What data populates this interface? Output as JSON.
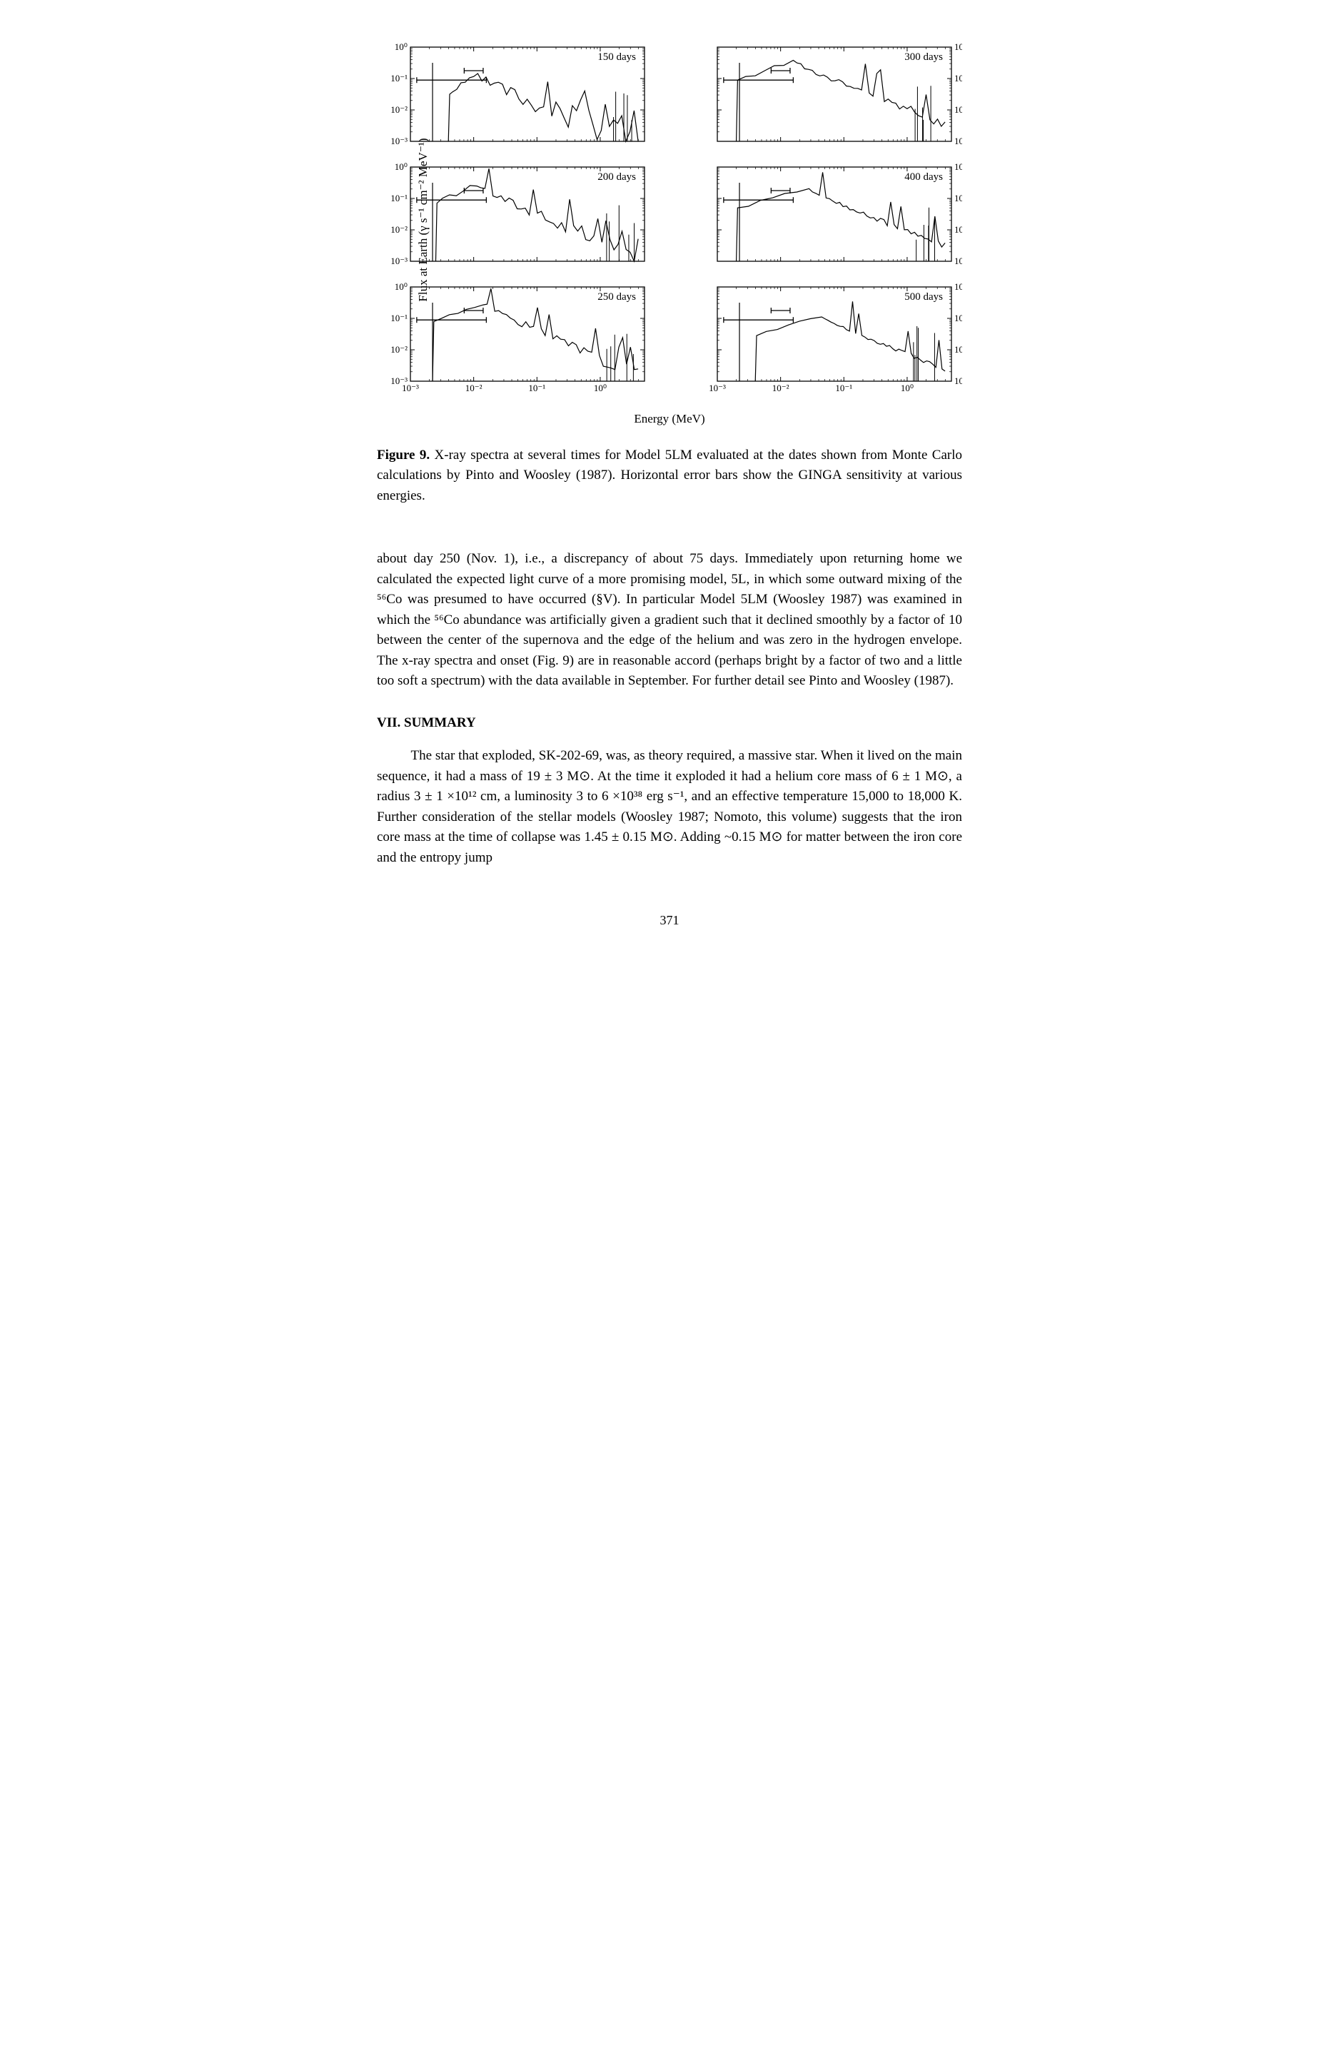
{
  "figure": {
    "ylabel": "Flux at Earth (γ s⁻¹ cm⁻² MeV⁻¹)",
    "xlabel": "Energy (MeV)",
    "xlim_log": [
      -3,
      0.7
    ],
    "ylim_log": [
      -3,
      0
    ],
    "xtick_labels": [
      "10⁻³",
      "10⁻²",
      "10⁻¹",
      "10⁰"
    ],
    "xtick_positions": [
      -3,
      -2,
      -1,
      0
    ],
    "ytick_labels": [
      "10⁻³",
      "10⁻²",
      "10⁻¹",
      "10⁰"
    ],
    "ytick_positions": [
      -3,
      -2,
      -1,
      0
    ],
    "tick_fontsize": 13,
    "label_fontsize": 17,
    "annot_fontsize": 15,
    "line_color": "#000000",
    "line_width": 1.2,
    "background_color": "#ffffff",
    "panels": [
      {
        "label": "150 days",
        "shape": {
          "rise_start": -2.4,
          "peak_x": -2.0,
          "peak_y": -0.9,
          "decay_noise": 0.9,
          "decay_end_y": -3.0
        }
      },
      {
        "label": "300 days",
        "shape": {
          "rise_start": -2.7,
          "peak_x": -1.8,
          "peak_y": -0.45,
          "decay_noise": 0.3,
          "decay_end_y": -2.4
        }
      },
      {
        "label": "200 days",
        "shape": {
          "rise_start": -2.6,
          "peak_x": -1.95,
          "peak_y": -0.55,
          "decay_noise": 0.6,
          "decay_end_y": -2.9
        }
      },
      {
        "label": "400 days",
        "shape": {
          "rise_start": -2.7,
          "peak_x": -1.55,
          "peak_y": -0.7,
          "decay_noise": 0.2,
          "decay_end_y": -2.5
        }
      },
      {
        "label": "250 days",
        "shape": {
          "rise_start": -2.65,
          "peak_x": -1.85,
          "peak_y": -0.5,
          "decay_noise": 0.4,
          "decay_end_y": -2.8
        }
      },
      {
        "label": "500 days",
        "shape": {
          "rise_start": -2.4,
          "peak_x": -1.35,
          "peak_y": -0.95,
          "decay_noise": 0.15,
          "decay_end_y": -2.6
        }
      }
    ],
    "error_bars": {
      "bars": [
        {
          "x_center": -2.35,
          "y": -1.05,
          "halfw": 0.55
        },
        {
          "x_center": -2.0,
          "y": -0.75,
          "halfw": 0.15
        }
      ]
    },
    "line_marks": [
      {
        "x": -2.65,
        "y1": -3.0,
        "y2": -0.5
      }
    ]
  },
  "caption": {
    "lead": "Figure 9.",
    "text": "X-ray spectra at several times for Model 5LM evaluated at the dates shown from Monte Carlo calculations by Pinto and Woosley (1987). Horizontal error bars show the GINGA sensitivity at various energies."
  },
  "paragraph1": "about day 250 (Nov. 1), i.e., a discrepancy of about 75 days. Immediately upon returning home we calculated the expected light curve of a more promising model, 5L, in which some outward mixing of the ⁵⁶Co was presumed to have occurred (§V). In particular Model 5LM (Woosley 1987) was examined in which the ⁵⁶Co abundance was artificially given a gradient such that it declined smoothly by a factor of 10 between the center of the supernova and the edge of the helium and was zero in the hydrogen envelope. The x-ray spectra and onset (Fig. 9) are in reasonable accord (perhaps bright by a factor of two and a little too soft a spectrum) with the data available in September. For further detail see Pinto and Woosley (1987).",
  "section": "VII. SUMMARY",
  "paragraph2": "The star that exploded, SK-202-69, was, as theory required, a massive star. When it lived on the main sequence, it had a mass of 19 ± 3 M⊙. At the time it exploded it had a helium core mass of 6 ± 1 M⊙, a radius 3 ± 1 ×10¹² cm, a luminosity 3 to 6 ×10³⁸ erg s⁻¹, and an effective temperature 15,000 to 18,000 K. Further consideration of the stellar models (Woosley 1987; Nomoto, this volume) suggests that the iron core mass at the time of collapse was 1.45 ± 0.15 M⊙. Adding ~0.15 M⊙ for matter between the iron core and the entropy jump",
  "page_number": "371"
}
